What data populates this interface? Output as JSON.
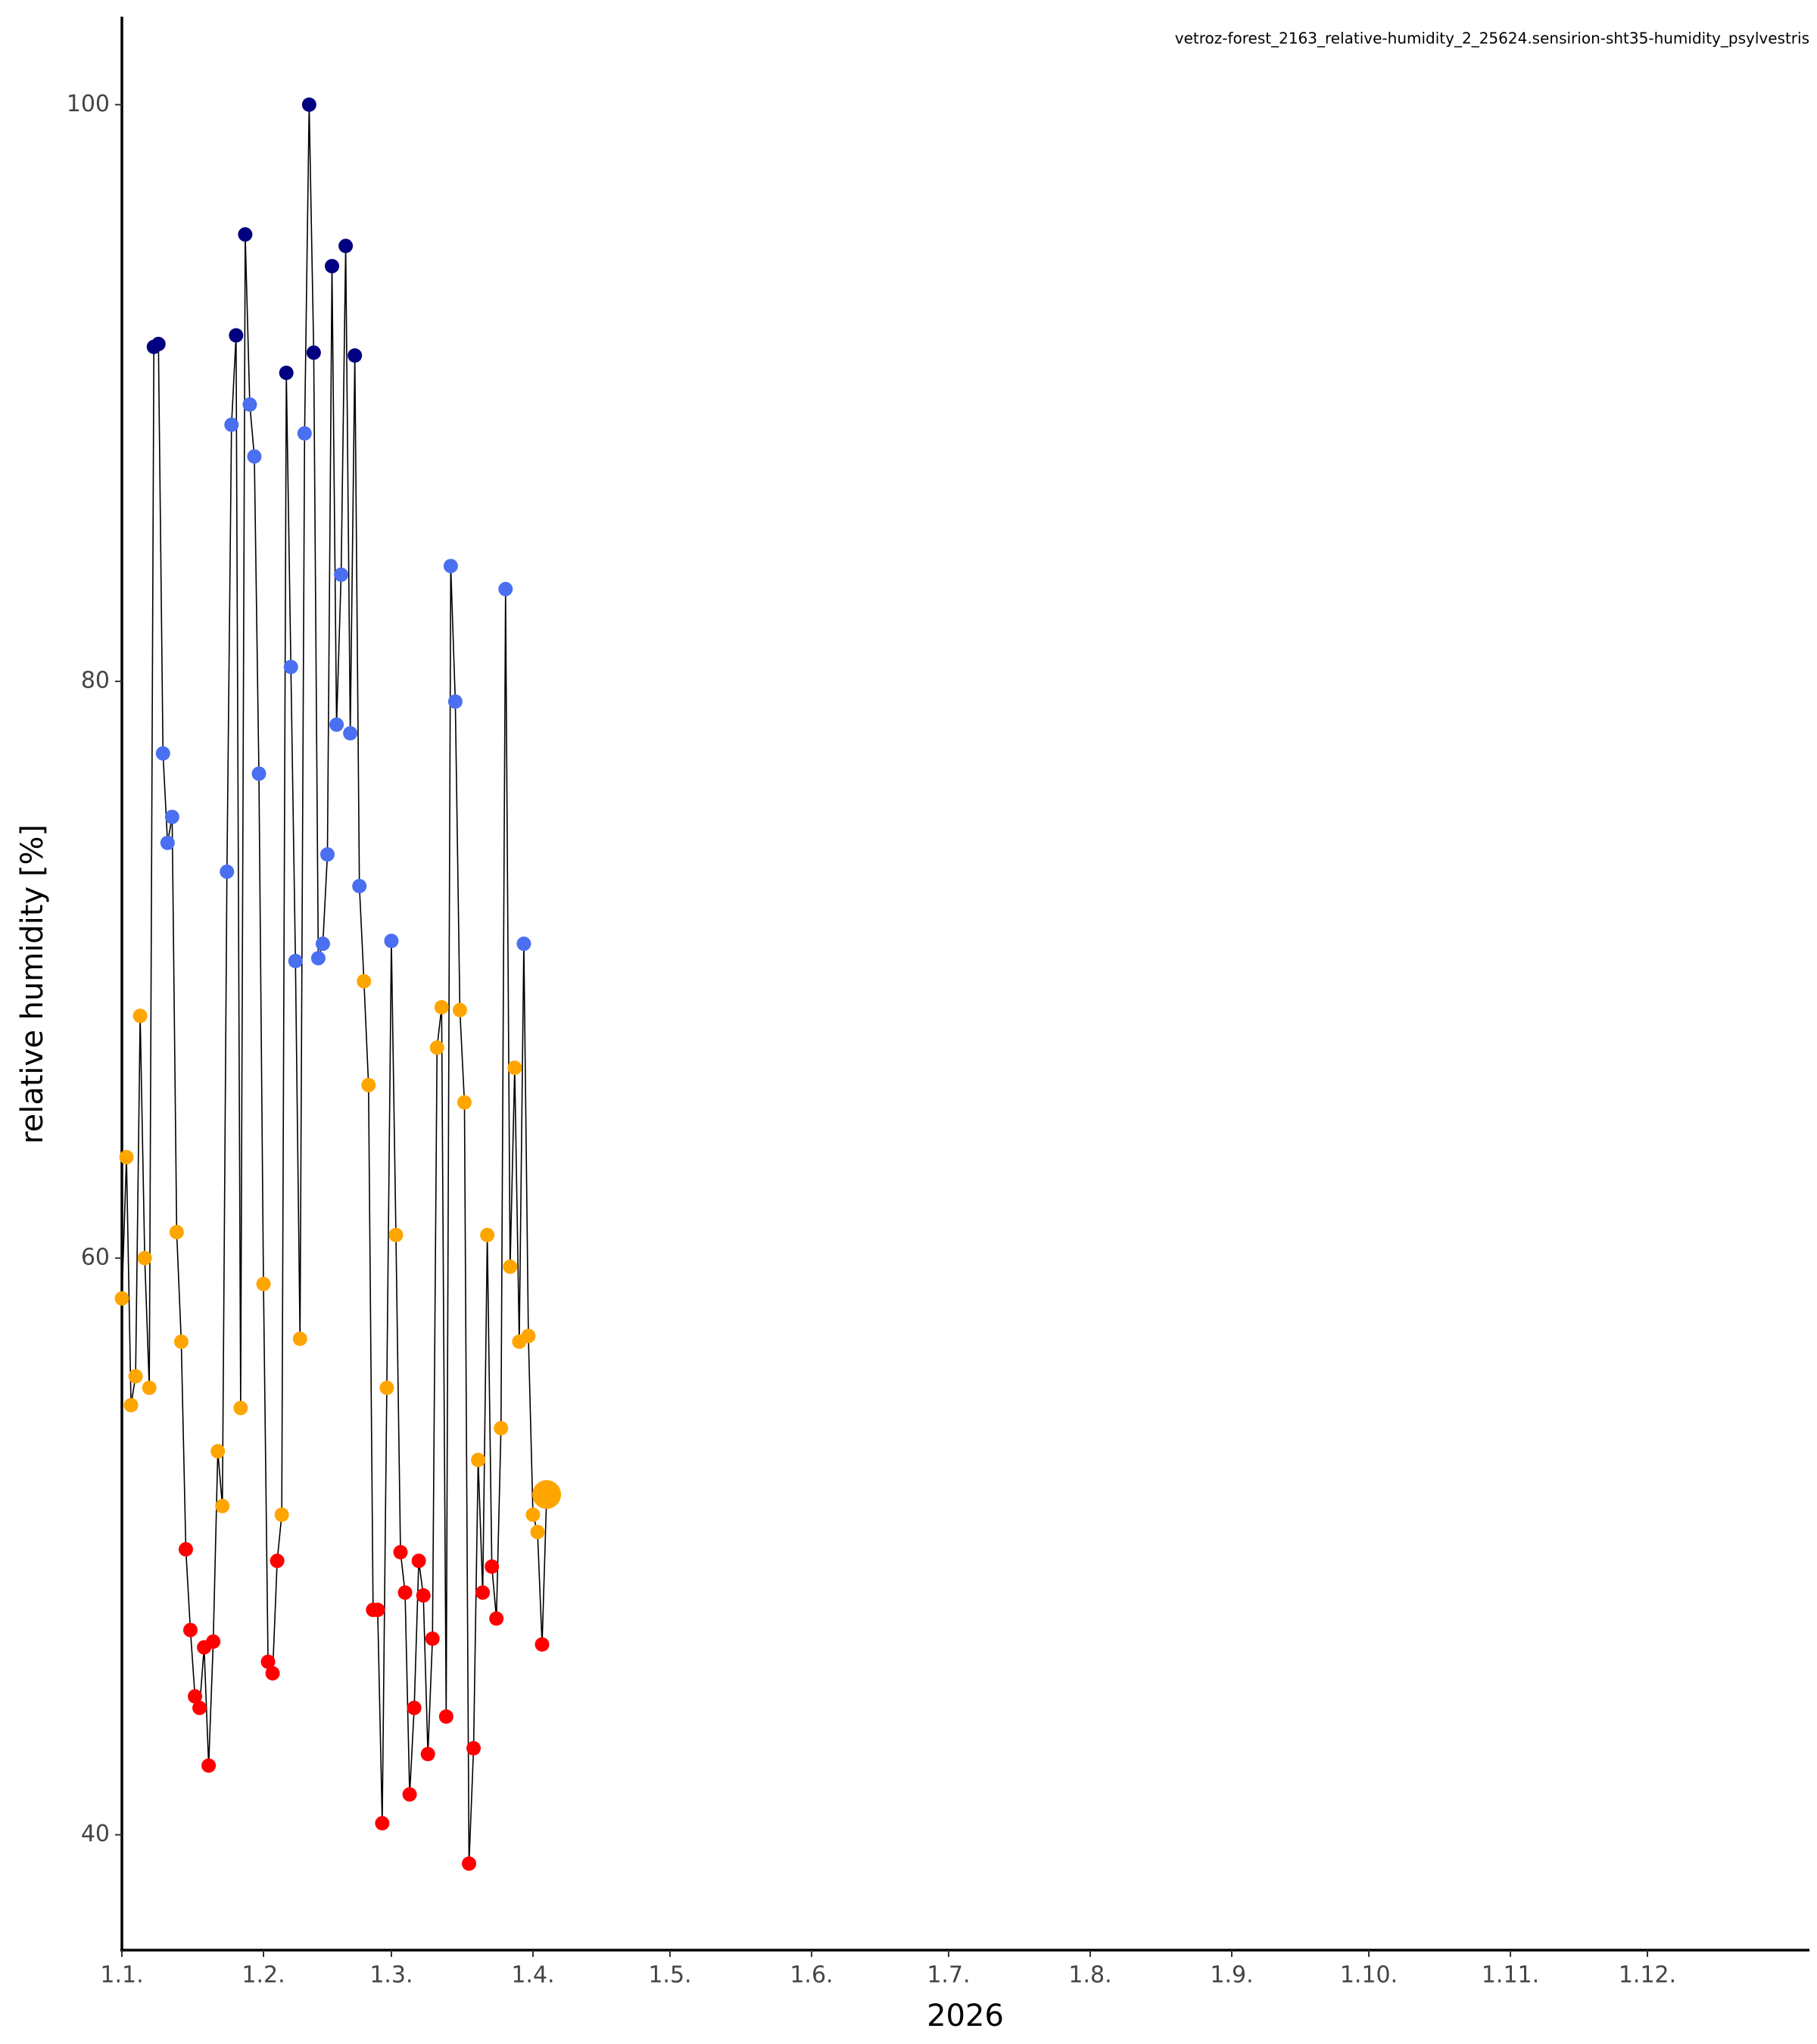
{
  "chart_data": {
    "type": "line",
    "title": "vetroz-forest_2163_relative-humidity_2_25624.sensirion-sht35-humidity_psylvestris",
    "xlabel": "2026",
    "ylabel": "relative humidity [%]",
    "x": [
      "2026-01-01",
      "2026-01-02",
      "2026-01-03",
      "2026-01-04",
      "2026-01-05",
      "2026-01-06",
      "2026-01-07",
      "2026-01-08",
      "2026-01-09",
      "2026-01-10",
      "2026-01-11",
      "2026-01-12",
      "2026-01-13",
      "2026-01-14",
      "2026-01-15",
      "2026-01-16",
      "2026-01-17",
      "2026-01-18",
      "2026-01-19",
      "2026-01-20",
      "2026-01-21",
      "2026-01-22",
      "2026-01-23",
      "2026-01-24",
      "2026-01-25",
      "2026-01-26",
      "2026-01-27",
      "2026-01-28",
      "2026-01-29",
      "2026-01-30",
      "2026-01-31",
      "2026-02-01",
      "2026-02-02",
      "2026-02-03",
      "2026-02-04",
      "2026-02-05",
      "2026-02-06",
      "2026-02-07",
      "2026-02-08",
      "2026-02-09",
      "2026-02-10",
      "2026-02-11",
      "2026-02-12",
      "2026-02-13",
      "2026-02-14",
      "2026-02-15",
      "2026-02-16",
      "2026-02-17",
      "2026-02-18",
      "2026-02-19",
      "2026-02-20",
      "2026-02-21",
      "2026-02-22",
      "2026-02-23",
      "2026-02-24",
      "2026-02-25",
      "2026-02-26",
      "2026-02-27",
      "2026-02-28",
      "2026-03-01",
      "2026-03-02",
      "2026-03-03",
      "2026-03-04",
      "2026-03-05",
      "2026-03-06",
      "2026-03-07",
      "2026-03-08",
      "2026-03-09",
      "2026-03-10",
      "2026-03-11",
      "2026-03-12",
      "2026-03-13",
      "2026-03-14",
      "2026-03-15",
      "2026-03-16",
      "2026-03-17",
      "2026-03-18",
      "2026-03-19",
      "2026-03-20",
      "2026-03-21",
      "2026-03-22",
      "2026-03-23",
      "2026-03-24",
      "2026-03-25",
      "2026-03-26",
      "2026-03-27",
      "2026-03-28",
      "2026-03-29",
      "2026-03-30",
      "2026-03-31",
      "2026-04-01",
      "2026-04-02",
      "2026-04-03",
      "2026-04-04"
    ],
    "series": [
      {
        "name": "relative humidity",
        "color": "#000000",
        "values": [
          58.6,
          63.5,
          54.9,
          55.9,
          68.4,
          60,
          55.5,
          91.6,
          91.7,
          77.5,
          74.4,
          75.3,
          60.9,
          57.1,
          49.9,
          47.1,
          44.8,
          44.4,
          46.5,
          42.4,
          46.7,
          53.3,
          51.4,
          73.4,
          88.9,
          92.0,
          54.8,
          95.5,
          89.6,
          87.8,
          76.8,
          59.1,
          46.0,
          45.6,
          49.5,
          51.1,
          90.7,
          80.5,
          70.3,
          57.2,
          88.6,
          100,
          91.4,
          70.4,
          70.9,
          74.0,
          94.4,
          78.5,
          83.7,
          95.1,
          78.2,
          91.3,
          72.9,
          69.6,
          66.0,
          47.8,
          47.8,
          40.4,
          55.5,
          71.0,
          60.8,
          49.8,
          48.4,
          41.4,
          44.4,
          49.5,
          48.3,
          42.8,
          46.8,
          67.3,
          68.7,
          44.1,
          84.0,
          79.3,
          68.6,
          65.4,
          39.0,
          43.0,
          53.0,
          48.4,
          60.8,
          49.3,
          47.5,
          54.1,
          83.2,
          59.7,
          66.6,
          57.1,
          70.9,
          57.3,
          51.1,
          50.5,
          46.6,
          51.8
        ]
      }
    ],
    "point_color_scale": {
      "breaks": [
        50,
        70,
        90
      ],
      "colors": [
        "#ff0000",
        "#ffa500",
        "#4a6ff0",
        "#000080"
      ]
    },
    "highlight_last": true,
    "xlim": [
      "2026-01-01",
      "2026-12-31"
    ],
    "xticks": [
      {
        "value": "2026-01-01",
        "label": "1.1."
      },
      {
        "value": "2026-02-01",
        "label": "1.2."
      },
      {
        "value": "2026-03-01",
        "label": "1.3."
      },
      {
        "value": "2026-04-01",
        "label": "1.4."
      },
      {
        "value": "2026-05-01",
        "label": "1.5."
      },
      {
        "value": "2026-06-01",
        "label": "1.6."
      },
      {
        "value": "2026-07-01",
        "label": "1.7."
      },
      {
        "value": "2026-08-01",
        "label": "1.8."
      },
      {
        "value": "2026-09-01",
        "label": "1.9."
      },
      {
        "value": "2026-10-01",
        "label": "1.10."
      },
      {
        "value": "2026-11-01",
        "label": "1.11."
      },
      {
        "value": "2026-12-01",
        "label": "1.12."
      }
    ],
    "ylim": [
      36,
      103
    ],
    "yticks": [
      40,
      60,
      80,
      100
    ],
    "grid": false
  }
}
